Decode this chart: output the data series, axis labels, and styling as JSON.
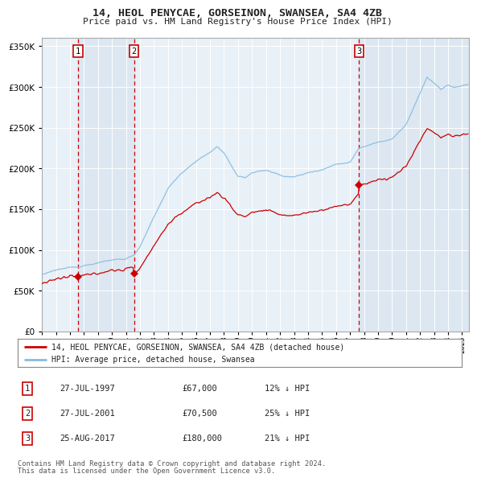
{
  "title": "14, HEOL PENYCAE, GORSEINON, SWANSEA, SA4 4ZB",
  "subtitle": "Price paid vs. HM Land Registry's House Price Index (HPI)",
  "legend_line1": "14, HEOL PENYCAE, GORSEINON, SWANSEA, SA4 4ZB (detached house)",
  "legend_line2": "HPI: Average price, detached house, Swansea",
  "footer1": "Contains HM Land Registry data © Crown copyright and database right 2024.",
  "footer2": "This data is licensed under the Open Government Licence v3.0.",
  "sale_color": "#cc0000",
  "hpi_color": "#88bbdd",
  "background_chart": "#e8f0f8",
  "background_fig": "#ffffff",
  "grid_color": "#ffffff",
  "vline_color": "#cc0000",
  "ylim": [
    0,
    360000
  ],
  "yticks": [
    0,
    50000,
    100000,
    150000,
    200000,
    250000,
    300000,
    350000
  ],
  "sale_points": [
    {
      "date_num": 1997.57,
      "price": 67000,
      "label": "1"
    },
    {
      "date_num": 2001.57,
      "price": 70500,
      "label": "2"
    },
    {
      "date_num": 2017.65,
      "price": 180000,
      "label": "3"
    }
  ],
  "annotations": [
    {
      "label": "1",
      "date": "27-JUL-1997",
      "price": "£67,000",
      "hpi": "12% ↓ HPI"
    },
    {
      "label": "2",
      "date": "27-JUL-2001",
      "price": "£70,500",
      "hpi": "25% ↓ HPI"
    },
    {
      "label": "3",
      "date": "25-AUG-2017",
      "price": "£180,000",
      "hpi": "21% ↓ HPI"
    }
  ],
  "xmin": 1995.0,
  "xmax": 2025.5,
  "xticks": [
    1995,
    1996,
    1997,
    1998,
    1999,
    2000,
    2001,
    2002,
    2003,
    2004,
    2005,
    2006,
    2007,
    2008,
    2009,
    2010,
    2011,
    2012,
    2013,
    2014,
    2015,
    2016,
    2017,
    2018,
    2019,
    2020,
    2021,
    2022,
    2023,
    2024,
    2025
  ]
}
